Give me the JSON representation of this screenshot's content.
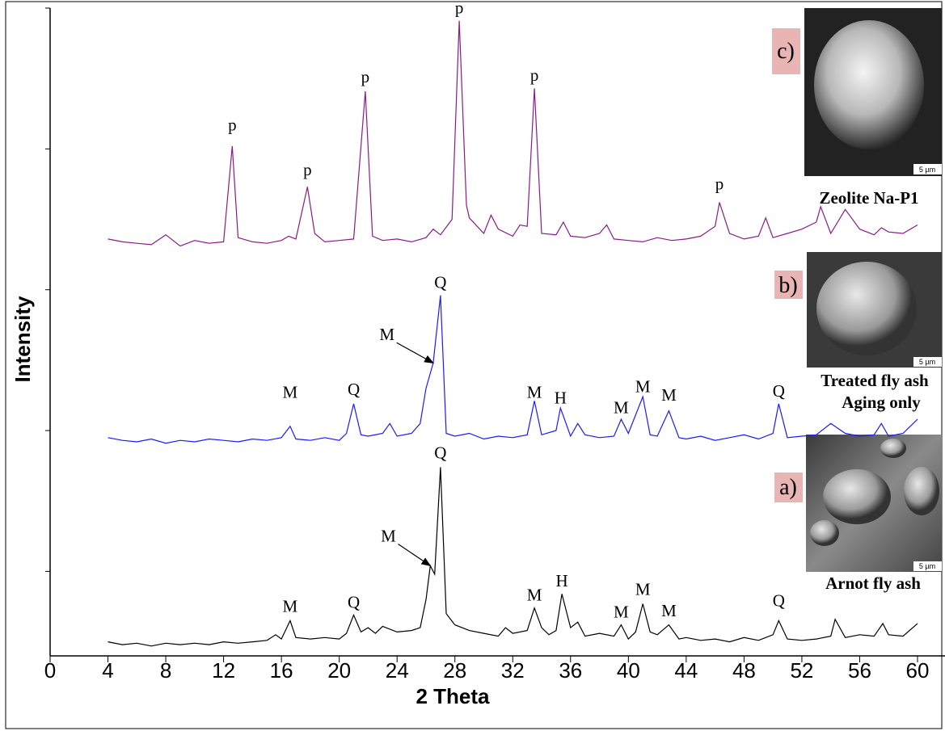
{
  "chart_data": {
    "type": "line",
    "xlabel": "2 Theta",
    "ylabel": "Intensity",
    "xlim": [
      0,
      60
    ],
    "xticks": [
      0,
      4,
      8,
      12,
      16,
      20,
      24,
      28,
      32,
      36,
      40,
      44,
      48,
      52,
      56,
      60
    ],
    "ylim": [
      0,
      460
    ],
    "yticks": [
      60,
      160,
      260,
      360,
      460
    ],
    "series": [
      {
        "color": "#000000",
        "x": [
          4,
          5,
          6,
          7,
          8,
          9,
          10,
          11,
          12,
          13,
          14,
          15,
          15.6,
          16,
          16.6,
          17,
          18,
          19,
          20,
          20.5,
          21,
          21.5,
          22,
          22.5,
          23,
          24,
          25,
          25.6,
          26,
          26.3,
          26.6,
          27,
          27.4,
          28,
          29,
          30,
          31,
          31.5,
          32,
          33,
          33.5,
          34,
          34.5,
          35,
          35.4,
          36,
          36.5,
          37,
          38,
          39,
          39.5,
          40,
          40.5,
          41,
          41.5,
          42,
          42.8,
          43.5,
          44,
          45,
          46,
          47,
          48,
          49,
          50,
          50.4,
          51,
          52,
          53,
          54,
          54.3,
          55,
          56,
          57,
          57.6,
          58,
          59,
          60
        ],
        "values": [
          10,
          8,
          9,
          7,
          9,
          8,
          9,
          8,
          10,
          9,
          10,
          11,
          15,
          12,
          25,
          13,
          12,
          13,
          12,
          16,
          29,
          17,
          20,
          16,
          21,
          17,
          18,
          20,
          40,
          64,
          58,
          134,
          30,
          22,
          18,
          16,
          14,
          20,
          16,
          18,
          34,
          20,
          15,
          18,
          44,
          20,
          24,
          14,
          16,
          14,
          22,
          12,
          17,
          37,
          17,
          15,
          22,
          12,
          13,
          11,
          12,
          10,
          13,
          11,
          15,
          25,
          12,
          11,
          12,
          14,
          26,
          13,
          15,
          14,
          23,
          15,
          14,
          23
        ]
      },
      {
        "color": "#1a1aff",
        "x": [
          4,
          5,
          6,
          7,
          8,
          9,
          10,
          11,
          12,
          13,
          14,
          15,
          16,
          16.6,
          17,
          18,
          19,
          20,
          20.5,
          21,
          21.5,
          22,
          23,
          23.5,
          24,
          25,
          25.6,
          26,
          26.5,
          27,
          27.4,
          28,
          29,
          30,
          31,
          32,
          33,
          33.5,
          34,
          35,
          35.3,
          36,
          36.5,
          37,
          38,
          39,
          39.5,
          40,
          41,
          41.5,
          42,
          42.8,
          43.5,
          44,
          45,
          46,
          47,
          48,
          49,
          50,
          50.4,
          51,
          52,
          53,
          54,
          55,
          56,
          57,
          57.5,
          58,
          59,
          60
        ],
        "values": [
          155,
          153,
          152,
          154,
          151,
          153,
          152,
          154,
          153,
          152,
          154,
          153,
          155,
          163,
          154,
          153,
          155,
          153,
          158,
          179,
          157,
          156,
          158,
          165,
          156,
          158,
          165,
          190,
          208,
          256,
          158,
          156,
          158,
          154,
          156,
          155,
          157,
          181,
          157,
          160,
          176,
          156,
          165,
          157,
          155,
          156,
          168,
          158,
          184,
          157,
          156,
          174,
          155,
          154,
          156,
          153,
          155,
          157,
          154,
          158,
          179,
          155,
          156,
          157,
          165,
          158,
          156,
          157,
          165,
          156,
          158,
          168
        ]
      },
      {
        "color": "#8b1a89",
        "x": [
          4,
          5,
          6,
          7,
          8,
          9,
          10,
          11,
          12,
          12.6,
          13,
          14,
          15,
          16,
          16.5,
          17,
          17.8,
          18.3,
          19,
          20,
          21,
          21.8,
          22.3,
          23,
          24,
          25,
          26,
          26.5,
          27,
          27.8,
          28.3,
          28.8,
          29,
          30,
          30.5,
          31,
          32,
          32.5,
          33,
          33.5,
          34,
          35,
          35.5,
          36,
          37,
          38,
          38.5,
          39,
          40,
          41,
          42,
          43,
          44,
          45,
          46,
          46.3,
          47,
          48,
          49,
          49.5,
          50,
          51,
          52,
          53,
          53.3,
          54,
          55,
          56,
          57,
          57.5,
          58,
          59,
          60
        ],
        "values": [
          296,
          294,
          293,
          292,
          299,
          291,
          295,
          293,
          294,
          362,
          297,
          294,
          293,
          295,
          298,
          296,
          333,
          300,
          294,
          295,
          296,
          401,
          298,
          295,
          296,
          294,
          297,
          303,
          299,
          310,
          451,
          320,
          311,
          300,
          313,
          303,
          298,
          306,
          305,
          403,
          300,
          299,
          308,
          298,
          297,
          300,
          306,
          296,
          295,
          294,
          297,
          295,
          296,
          298,
          305,
          322,
          300,
          296,
          298,
          311,
          297,
          300,
          303,
          308,
          319,
          300,
          317,
          303,
          299,
          304,
          301,
          300,
          306
        ]
      }
    ],
    "annotations": [
      {
        "text": "p",
        "x": 12.6,
        "y": 376
      },
      {
        "text": "p",
        "x": 17.8,
        "y": 344
      },
      {
        "text": "p",
        "x": 21.8,
        "y": 410
      },
      {
        "text": "p",
        "x": 28.3,
        "y": 459
      },
      {
        "text": "p",
        "x": 33.5,
        "y": 411
      },
      {
        "text": "p",
        "x": 46.3,
        "y": 334
      },
      {
        "text": "Q",
        "x": 27,
        "y": 264
      },
      {
        "text": "M",
        "x": 23.3,
        "y": 227,
        "xy": [
          26.5,
          208
        ]
      },
      {
        "text": "M",
        "x": 16.6,
        "y": 186
      },
      {
        "text": "Q",
        "x": 21,
        "y": 188
      },
      {
        "text": "M",
        "x": 33.5,
        "y": 186
      },
      {
        "text": "H",
        "x": 35.3,
        "y": 182
      },
      {
        "text": "M",
        "x": 39.5,
        "y": 175
      },
      {
        "text": "M",
        "x": 41,
        "y": 190
      },
      {
        "text": "M",
        "x": 42.8,
        "y": 184
      },
      {
        "text": "Q",
        "x": 50.4,
        "y": 187
      },
      {
        "text": "Q",
        "x": 27,
        "y": 143
      },
      {
        "text": "M",
        "x": 23.4,
        "y": 84,
        "xy": [
          26.3,
          64
        ]
      },
      {
        "text": "M",
        "x": 16.6,
        "y": 34
      },
      {
        "text": "Q",
        "x": 21,
        "y": 37
      },
      {
        "text": "M",
        "x": 33.5,
        "y": 42
      },
      {
        "text": "H",
        "x": 35.4,
        "y": 52
      },
      {
        "text": "M",
        "x": 39.5,
        "y": 30
      },
      {
        "text": "M",
        "x": 41,
        "y": 46
      },
      {
        "text": "M",
        "x": 42.8,
        "y": 31
      },
      {
        "text": "Q",
        "x": 50.4,
        "y": 38
      }
    ]
  },
  "insets": [
    {
      "tag": "c)",
      "caption": [
        "Zeolite Na-P1"
      ],
      "scale": "5 µm"
    },
    {
      "tag": "b)",
      "caption": [
        "Treated fly ash",
        "Aging only"
      ],
      "scale": "5 µm"
    },
    {
      "tag": "a)",
      "caption": [
        "Arnot fly ash"
      ],
      "scale": "5 µm"
    }
  ]
}
